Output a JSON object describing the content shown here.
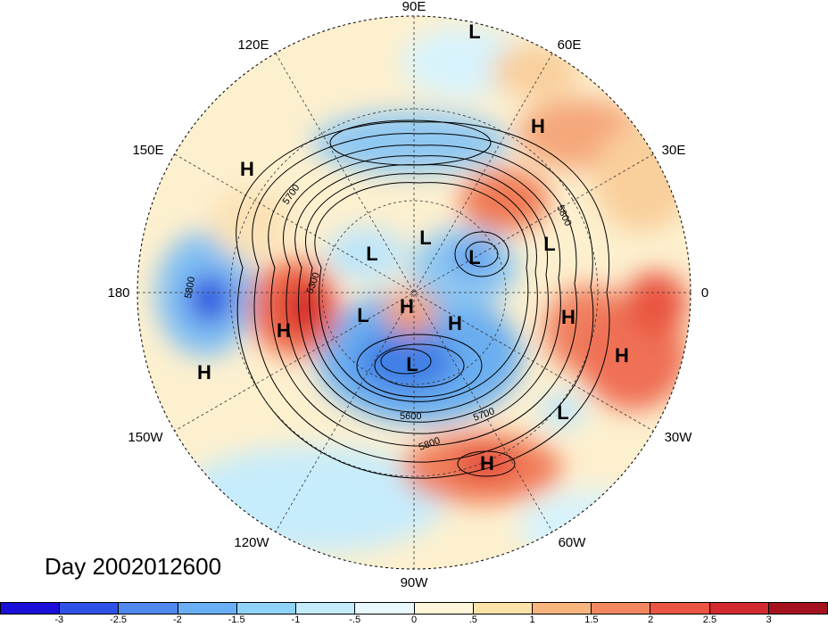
{
  "caption": "Day 2002012600",
  "longitude_labels": [
    "90E",
    "60E",
    "30E",
    "0",
    "30W",
    "60W",
    "90W",
    "120W",
    "150W",
    "180",
    "150E",
    "120E"
  ],
  "pressure_centers": [
    {
      "label": "L"
    },
    {
      "label": "H"
    },
    {
      "label": "H"
    },
    {
      "label": "L"
    },
    {
      "label": "L"
    },
    {
      "label": "L"
    },
    {
      "label": "L"
    },
    {
      "label": "H"
    },
    {
      "label": "L"
    },
    {
      "label": "H"
    },
    {
      "label": "H"
    },
    {
      "label": "H"
    },
    {
      "label": "L"
    },
    {
      "label": "H"
    },
    {
      "label": "L"
    },
    {
      "label": "H"
    },
    {
      "label": "H"
    }
  ],
  "contour_labels": [
    "5700",
    "5800",
    "5300",
    "5600",
    "5700",
    "5800",
    "5800"
  ],
  "colorbar": {
    "colors": [
      "#1a0fd8",
      "#2f52e6",
      "#4f88ee",
      "#6aaff4",
      "#8fd3f8",
      "#c3ecfb",
      "#e8f8fd",
      "#fdf6d8",
      "#fbe3a8",
      "#f8b57d",
      "#f3875f",
      "#ec5443",
      "#d32a2f",
      "#a5121f"
    ],
    "ticks": [
      "-3",
      "-2.5",
      "-2",
      "-1.5",
      "-1",
      "-.5",
      "0",
      ".5",
      "1",
      "1.5",
      "2",
      "2.5",
      "3"
    ]
  }
}
